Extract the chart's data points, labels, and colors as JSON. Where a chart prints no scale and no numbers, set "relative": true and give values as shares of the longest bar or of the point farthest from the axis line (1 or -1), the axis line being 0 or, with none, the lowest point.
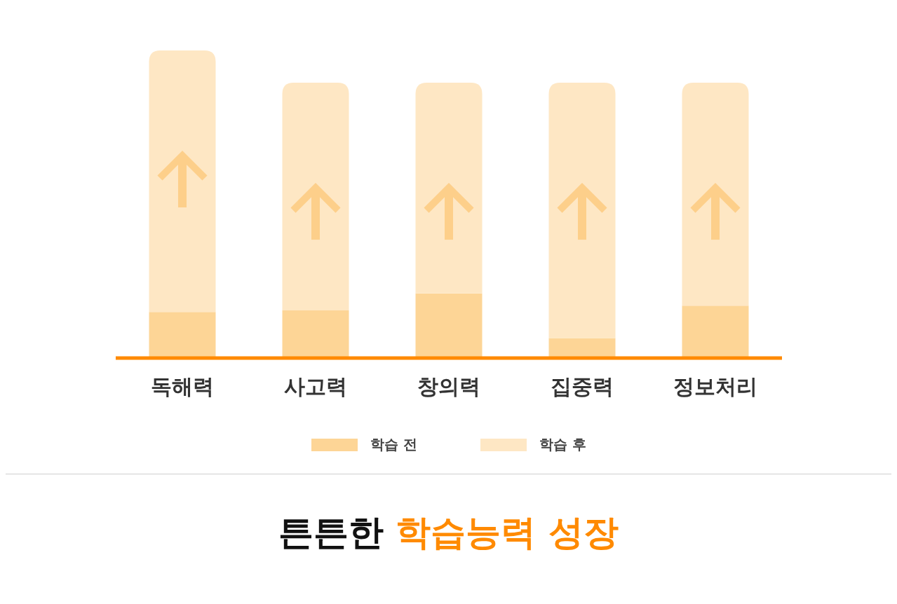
{
  "chart_data": {
    "type": "bar",
    "title": "튼튼한 학습능력 성장",
    "categories": [
      "독해력",
      "사고력",
      "창의력",
      "집중력",
      "정보처리"
    ],
    "stacked": true,
    "relative": true,
    "legend": "bottom",
    "grid": false,
    "series": [
      {
        "name": "학습 전",
        "color": "#fdd596",
        "values": [
          0.15,
          0.155,
          0.21,
          0.065,
          0.17
        ]
      },
      {
        "name": "학습 후",
        "color": "#fee7c4",
        "values": [
          0.85,
          0.74,
          0.685,
          0.83,
          0.725
        ]
      }
    ]
  }
}
